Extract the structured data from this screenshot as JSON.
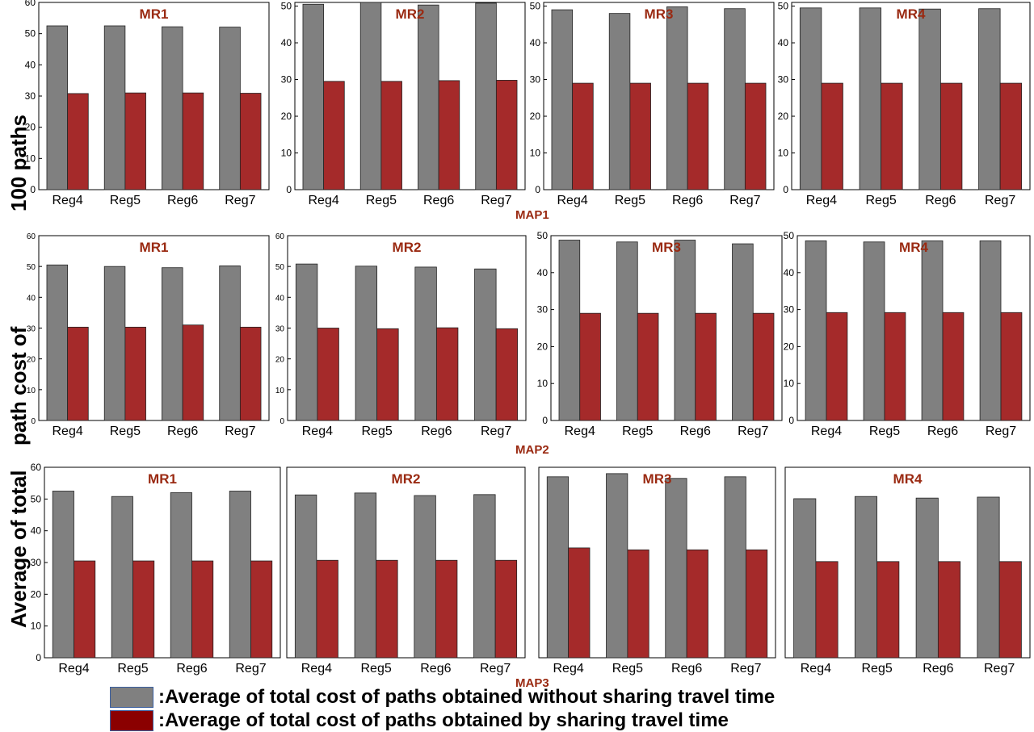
{
  "y_axis_label": [
    "Average of total",
    "path cost of",
    "100 paths"
  ],
  "colors": {
    "without_sharing": "#808080",
    "with_sharing": "#a52a2a",
    "legend_with_sharing": "#8b0000",
    "title": "#9a2a12"
  },
  "legend": {
    "without_sharing": ":Average of total cost of paths obtained without sharing travel time",
    "with_sharing": ":Average of total cost of paths obtained by sharing travel time"
  },
  "chart_data": [
    {
      "type": "bar",
      "map": "MAP1",
      "title": "MR1",
      "categories": [
        "Reg4",
        "Reg5",
        "Reg6",
        "Reg7"
      ],
      "ylim": [
        0,
        60
      ],
      "yticks": [
        0,
        10,
        20,
        30,
        40,
        50,
        60
      ],
      "xlabel": "",
      "ylabel": "",
      "series": [
        {
          "name": "without sharing",
          "values": [
            52.5,
            52.5,
            52.2,
            52.1
          ]
        },
        {
          "name": "with sharing",
          "values": [
            30.8,
            31.0,
            31.0,
            30.9
          ]
        }
      ]
    },
    {
      "type": "bar",
      "map": "MAP1",
      "title": "MR2",
      "categories": [
        "Reg4",
        "Reg5",
        "Reg6",
        "Reg7"
      ],
      "ylim": [
        0,
        51
      ],
      "yticks": [
        0,
        10,
        20,
        30,
        40,
        50
      ],
      "xlabel": "",
      "ylabel": "",
      "series": [
        {
          "name": "without sharing",
          "values": [
            50.5,
            51.3,
            50.3,
            50.8
          ]
        },
        {
          "name": "with sharing",
          "values": [
            29.5,
            29.5,
            29.7,
            29.8
          ]
        }
      ]
    },
    {
      "type": "bar",
      "map": "MAP1",
      "title": "MR3",
      "categories": [
        "Reg4",
        "Reg5",
        "Reg6",
        "Reg7"
      ],
      "ylim": [
        0,
        51
      ],
      "yticks": [
        0,
        10,
        20,
        30,
        40,
        50
      ],
      "xlabel": "",
      "ylabel": "",
      "series": [
        {
          "name": "without sharing",
          "values": [
            49.0,
            48.0,
            49.8,
            49.3
          ]
        },
        {
          "name": "with sharing",
          "values": [
            29.0,
            29.0,
            29.0,
            29.0
          ]
        }
      ]
    },
    {
      "type": "bar",
      "map": "MAP1",
      "title": "MR4",
      "categories": [
        "Reg4",
        "Reg5",
        "Reg6",
        "Reg7"
      ],
      "ylim": [
        0,
        51
      ],
      "yticks": [
        0,
        10,
        20,
        30,
        40,
        50
      ],
      "xlabel": "",
      "ylabel": "",
      "series": [
        {
          "name": "without sharing",
          "values": [
            49.5,
            49.5,
            49.2,
            49.3
          ]
        },
        {
          "name": "with sharing",
          "values": [
            29.0,
            29.0,
            29.0,
            29.0
          ]
        }
      ]
    },
    {
      "type": "bar",
      "map": "MAP2",
      "title": "MR1",
      "categories": [
        "Reg4",
        "Reg5",
        "Reg6",
        "Reg7"
      ],
      "ylim": [
        0,
        60
      ],
      "yticks": [
        0,
        10,
        20,
        30,
        40,
        50,
        60
      ],
      "xlabel": "",
      "ylabel": "",
      "series": [
        {
          "name": "without sharing",
          "values": [
            50.5,
            50.0,
            49.6,
            50.2
          ]
        },
        {
          "name": "with sharing",
          "values": [
            30.3,
            30.3,
            31.0,
            30.3
          ]
        }
      ]
    },
    {
      "type": "bar",
      "map": "MAP2",
      "title": "MR2",
      "categories": [
        "Reg4",
        "Reg5",
        "Reg6",
        "Reg7"
      ],
      "ylim": [
        0,
        60
      ],
      "yticks": [
        0,
        10,
        20,
        30,
        40,
        50,
        60
      ],
      "xlabel": "",
      "ylabel": "",
      "series": [
        {
          "name": "without sharing",
          "values": [
            50.8,
            50.1,
            49.8,
            49.2
          ]
        },
        {
          "name": "with sharing",
          "values": [
            30.0,
            29.8,
            30.1,
            29.8
          ]
        }
      ]
    },
    {
      "type": "bar",
      "map": "MAP2",
      "title": "MR3",
      "categories": [
        "Reg4",
        "Reg5",
        "Reg6",
        "Reg7"
      ],
      "ylim": [
        0,
        50
      ],
      "yticks": [
        0,
        10,
        20,
        30,
        40,
        50
      ],
      "xlabel": "",
      "ylabel": "",
      "series": [
        {
          "name": "without sharing",
          "values": [
            48.8,
            48.3,
            48.8,
            47.8
          ]
        },
        {
          "name": "with sharing",
          "values": [
            29.0,
            29.0,
            29.0,
            29.0
          ]
        }
      ]
    },
    {
      "type": "bar",
      "map": "MAP2",
      "title": "MR4",
      "categories": [
        "Reg4",
        "Reg5",
        "Reg6",
        "Reg7"
      ],
      "ylim": [
        0,
        50
      ],
      "yticks": [
        0,
        10,
        20,
        30,
        40,
        50
      ],
      "xlabel": "",
      "ylabel": "",
      "series": [
        {
          "name": "without sharing",
          "values": [
            48.6,
            48.3,
            48.6,
            48.6
          ]
        },
        {
          "name": "with sharing",
          "values": [
            29.2,
            29.2,
            29.2,
            29.2
          ]
        }
      ]
    },
    {
      "type": "bar",
      "map": "MAP3",
      "title": "MR1",
      "categories": [
        "Reg4",
        "Reg5",
        "Reg6",
        "Reg7"
      ],
      "ylim": [
        0,
        60
      ],
      "yticks": [
        0,
        10,
        20,
        30,
        40,
        50,
        60
      ],
      "xlabel": "",
      "ylabel": "",
      "series": [
        {
          "name": "without sharing",
          "values": [
            52.5,
            50.8,
            52.0,
            52.5
          ]
        },
        {
          "name": "with sharing",
          "values": [
            30.5,
            30.5,
            30.5,
            30.5
          ]
        }
      ]
    },
    {
      "type": "bar",
      "map": "MAP3",
      "title": "MR2",
      "categories": [
        "Reg4",
        "Reg5",
        "Reg6",
        "Reg7"
      ],
      "ylim": [
        0,
        60
      ],
      "yticks": [],
      "xlabel": "",
      "ylabel": "",
      "series": [
        {
          "name": "without sharing",
          "values": [
            51.3,
            51.9,
            51.1,
            51.4
          ]
        },
        {
          "name": "with sharing",
          "values": [
            30.7,
            30.7,
            30.7,
            30.7
          ]
        }
      ]
    },
    {
      "type": "bar",
      "map": "MAP3",
      "title": "MR3",
      "categories": [
        "Reg4",
        "Reg5",
        "Reg6",
        "Reg7"
      ],
      "ylim": [
        0,
        60
      ],
      "yticks": [],
      "xlabel": "",
      "ylabel": "",
      "series": [
        {
          "name": "without sharing",
          "values": [
            57.0,
            58.0,
            56.5,
            57.0
          ]
        },
        {
          "name": "with sharing",
          "values": [
            34.6,
            34.0,
            34.0,
            34.0
          ]
        }
      ]
    },
    {
      "type": "bar",
      "map": "MAP3",
      "title": "MR4",
      "categories": [
        "Reg4",
        "Reg5",
        "Reg6",
        "Reg7"
      ],
      "ylim": [
        0,
        60
      ],
      "yticks": [],
      "xlabel": "",
      "ylabel": "",
      "series": [
        {
          "name": "without sharing",
          "values": [
            50.1,
            50.8,
            50.3,
            50.6
          ]
        },
        {
          "name": "with sharing",
          "values": [
            30.3,
            30.3,
            30.3,
            30.3
          ]
        }
      ]
    }
  ],
  "map_labels": [
    "MAP1",
    "MAP2",
    "MAP3"
  ]
}
